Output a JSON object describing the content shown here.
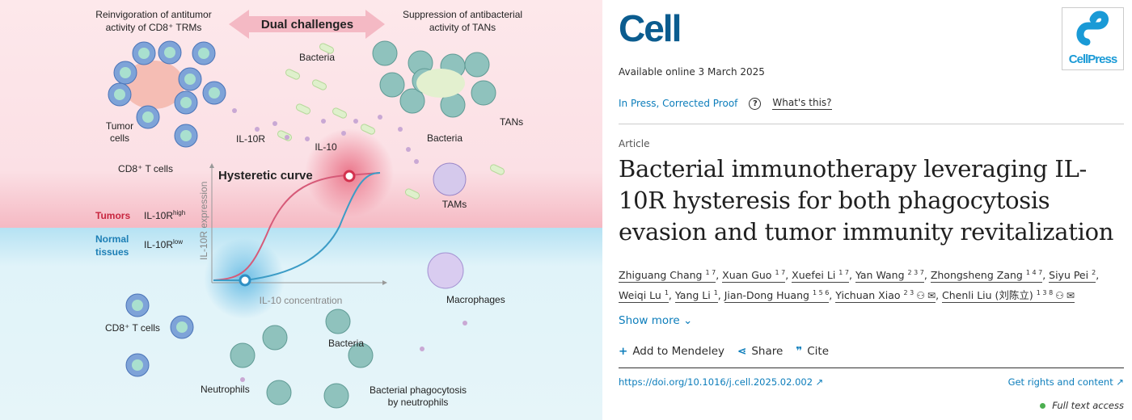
{
  "figure": {
    "top_left_title_1": "Reinvigoration of antitumor",
    "top_left_title_2": "activity of CD8⁺ TRMs",
    "dual_challenges": "Dual challenges",
    "top_right_title_1": "Suppression of antibacterial",
    "top_right_title_2": "activity of TANs",
    "bacteria_top": "Bacteria",
    "tumor_cells_1": "Tumor",
    "tumor_cells_2": "cells",
    "il10r": "IL-10R",
    "il10": "IL-10",
    "cd8_top": "CD8⁺ T cells",
    "bacteria_tans": "Bacteria",
    "tans": "TANs",
    "tams": "TAMs",
    "hysteretic_curve": "Hysteretic curve",
    "y_axis": "IL-10R expression",
    "x_axis": "IL-10 concentration",
    "tumors": "Tumors",
    "il10r_high": "IL-10R",
    "high_sup": "high",
    "normal_1": "Normal",
    "normal_2": "tissues",
    "il10r_low": "IL-10R",
    "low_sup": "low",
    "macrophages": "Macrophages",
    "cd8_bottom": "CD8⁺ T cells",
    "bacteria_bottom": "Bacteria",
    "neutrophils": "Neutrophils",
    "phago_1": "Bacterial phagocytosis",
    "phago_2": "by neutrophils",
    "colors": {
      "tumor_bg": "#fbe3e7",
      "normal_bg": "#e2f3f8",
      "red": "#d3324e",
      "blue": "#2e8fc4"
    }
  },
  "journal": {
    "name": "Cell",
    "publisher_logo": "CellPress"
  },
  "available_online": "Available online 3 March 2025",
  "status": "In Press, Corrected Proof",
  "whats_this": "What's this?",
  "article_type": "Article",
  "title": "Bacterial immunotherapy leveraging IL-10R hysteresis for both phagocytosis evasion and tumor immunity revitalization",
  "authors": [
    {
      "name": "Zhiguang Chang",
      "aff": "1 7"
    },
    {
      "name": "Xuan Guo",
      "aff": "1 7"
    },
    {
      "name": "Xuefei Li",
      "aff": "1 7"
    },
    {
      "name": "Yan Wang",
      "aff": "2 3 7"
    },
    {
      "name": "Zhongsheng Zang",
      "aff": "1 4 7"
    },
    {
      "name": "Siyu Pei",
      "aff": "2"
    },
    {
      "name": "Weiqi Lu",
      "aff": "1"
    },
    {
      "name": "Yang Li",
      "aff": "1"
    },
    {
      "name": "Jian-Dong Huang",
      "aff": "1 5 6"
    },
    {
      "name": "Yichuan Xiao",
      "aff": "2 3",
      "contact": true
    },
    {
      "name": "Chenli Liu (刘陈立)",
      "aff": "1 3 8",
      "contact": true
    }
  ],
  "show_more": "Show more",
  "actions": {
    "mendeley": "Add to Mendeley",
    "share": "Share",
    "cite": "Cite"
  },
  "doi": "https://doi.org/10.1016/j.cell.2025.02.002",
  "rights": "Get rights and content",
  "access": "Full text access"
}
